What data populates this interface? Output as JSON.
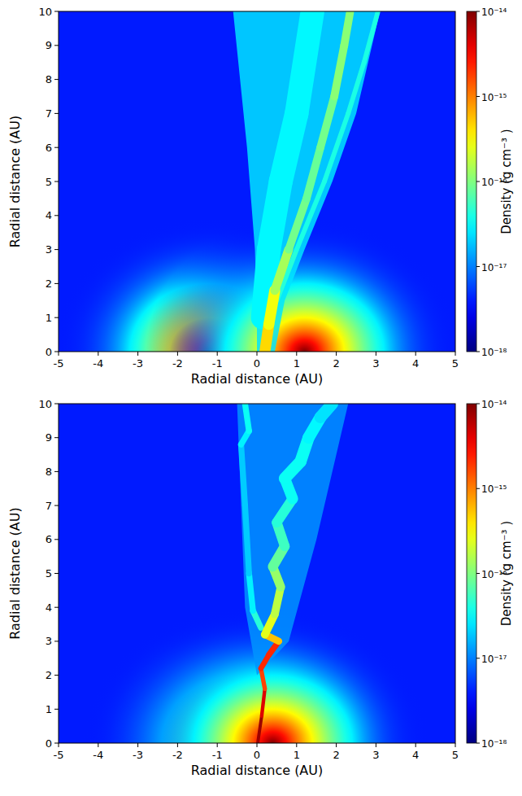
{
  "chart_data": [
    {
      "type": "heatmap",
      "x_label": "Radial distance (AU)",
      "y_label": "Radial distance (AU)",
      "xlim": [
        -5,
        5
      ],
      "xticks": [
        -5,
        -4,
        -3,
        -2,
        -1,
        0,
        1,
        2,
        3,
        4,
        5
      ],
      "ylim": [
        0,
        10
      ],
      "yticks": [
        0,
        1,
        2,
        3,
        4,
        5,
        6,
        7,
        8,
        9,
        10
      ],
      "ambient_density": 4e-18,
      "sources": [
        {
          "x": -1.2,
          "y": 0,
          "density": 1e-14,
          "radius": 4
        },
        {
          "x": 1.2,
          "y": 0,
          "density": 1e-14,
          "radius": 4
        }
      ],
      "outflow": {
        "points": [
          [
            0.0,
            0
          ],
          [
            0.45,
            0
          ],
          [
            0.7,
            1.5
          ],
          [
            1.2,
            3
          ],
          [
            1.9,
            5
          ],
          [
            2.5,
            7
          ],
          [
            3.1,
            10
          ],
          [
            -0.6,
            10
          ],
          [
            -0.25,
            6
          ],
          [
            -0.05,
            3
          ],
          [
            0,
            1
          ]
        ],
        "density": 2.5e-17
      },
      "filaments": [
        {
          "points": [
            [
              0.15,
              1
            ],
            [
              0.3,
              3
            ],
            [
              0.6,
              5
            ],
            [
              1.0,
              7
            ],
            [
              1.4,
              10
            ]
          ],
          "widths": [
            0.6,
            0.6,
            0.6,
            0.6,
            0.6
          ],
          "densities": [
            3e-17,
            3e-17,
            3e-17,
            3e-17,
            3e-17
          ]
        },
        {
          "points": [
            [
              0.5,
              1.5
            ],
            [
              1.0,
              3
            ],
            [
              1.7,
              5
            ],
            [
              2.3,
              7
            ],
            [
              2.7,
              8.5
            ],
            [
              3.05,
              10
            ]
          ],
          "widths": [
            0.12,
            0.12,
            0.12,
            0.12,
            0.12,
            0.12
          ],
          "densities": [
            5e-17,
            4e-17,
            4e-17,
            4e-17,
            4e-17,
            4e-17
          ]
        },
        {
          "points": [
            [
              0.2,
              0
            ],
            [
              0.3,
              0.8
            ],
            [
              0.45,
              1.8
            ],
            [
              0.8,
              3
            ],
            [
              1.25,
              4.5
            ],
            [
              1.6,
              6
            ],
            [
              1.95,
              7.5
            ],
            [
              2.2,
              9
            ],
            [
              2.35,
              10
            ]
          ],
          "widths": [
            0.25,
            0.3,
            0.25,
            0.2,
            0.2,
            0.2,
            0.2,
            0.2,
            0.2
          ],
          "densities": [
            5e-16,
            4e-16,
            2e-16,
            1e-16,
            8e-17,
            8e-17,
            1e-16,
            1.2e-16,
            1e-16
          ]
        }
      ],
      "colorbar": {
        "label": "Density (g cm⁻³ )",
        "range": [
          1e-18,
          1e-14
        ],
        "log": true,
        "ticks": [
          {
            "value": 1e-18,
            "label": "10⁻¹⁸"
          },
          {
            "value": 1e-17,
            "label": "10⁻¹⁷"
          },
          {
            "value": 1e-16,
            "label": "10⁻¹⁶"
          },
          {
            "value": 1e-15,
            "label": "10⁻¹⁵"
          },
          {
            "value": 1e-14,
            "label": "10⁻¹⁴"
          }
        ]
      }
    },
    {
      "type": "heatmap",
      "x_label": "Radial distance (AU)",
      "y_label": "Radial distance (AU)",
      "xlim": [
        -5,
        5
      ],
      "xticks": [
        -5,
        -4,
        -3,
        -2,
        -1,
        0,
        1,
        2,
        3,
        4,
        5
      ],
      "ylim": [
        0,
        10
      ],
      "yticks": [
        0,
        1,
        2,
        3,
        4,
        5,
        6,
        7,
        8,
        9,
        10
      ],
      "ambient_density": 4e-18,
      "sources": [
        {
          "x": -0.4,
          "y": 0,
          "density": 1e-14,
          "radius": 4
        },
        {
          "x": 0.4,
          "y": 0,
          "density": 1e-14,
          "radius": 4
        }
      ],
      "outflow": {
        "points": [
          [
            0,
            2
          ],
          [
            0.8,
            3
          ],
          [
            1.5,
            6
          ],
          [
            2.3,
            10
          ],
          [
            -0.5,
            10
          ],
          [
            -0.4,
            7
          ],
          [
            -0.3,
            4
          ]
        ],
        "density": 1.2e-17
      },
      "filaments": [
        {
          "points": [
            [
              0.1,
              3.4
            ],
            [
              -0.1,
              3.9
            ],
            [
              -0.2,
              5
            ],
            [
              -0.3,
              7
            ],
            [
              -0.4,
              8.8
            ],
            [
              -0.2,
              9.2
            ],
            [
              -0.3,
              10
            ]
          ],
          "widths": [
            0.15,
            0.15,
            0.15,
            0.15,
            0.15,
            0.15,
            0.15
          ],
          "densities": [
            5e-17,
            4e-17,
            2e-17,
            2e-17,
            2e-17,
            4e-17,
            3e-17
          ]
        },
        {
          "points": [
            [
              0.02,
              0
            ],
            [
              0.12,
              0.8
            ],
            [
              0.2,
              1.6
            ],
            [
              0.1,
              2.2
            ],
            [
              0.3,
              2.6
            ],
            [
              0.55,
              3.0
            ],
            [
              0.2,
              3.2
            ],
            [
              0.45,
              3.8
            ],
            [
              0.6,
              4.6
            ],
            [
              0.4,
              5.2
            ],
            [
              0.7,
              5.8
            ],
            [
              0.5,
              6.5
            ],
            [
              0.9,
              7.2
            ],
            [
              0.7,
              7.8
            ],
            [
              1.1,
              8.3
            ],
            [
              1.3,
              9.0
            ],
            [
              1.6,
              9.6
            ],
            [
              1.9,
              10
            ]
          ],
          "widths": [
            0.08,
            0.08,
            0.1,
            0.12,
            0.15,
            0.15,
            0.2,
            0.2,
            0.2,
            0.25,
            0.25,
            0.25,
            0.25,
            0.3,
            0.3,
            0.3,
            0.3,
            0.3
          ],
          "densities": [
            1e-14,
            6e-15,
            3e-15,
            1e-15,
            5e-15,
            1e-15,
            3e-16,
            2e-16,
            1.5e-16,
            1e-16,
            6e-17,
            5e-17,
            4e-17,
            3e-17,
            4e-17,
            3e-17,
            3e-17,
            2e-17
          ]
        }
      ],
      "colorbar": {
        "label": "Density (g cm⁻³ )",
        "range": [
          1e-18,
          1e-14
        ],
        "log": true,
        "ticks": [
          {
            "value": 1e-18,
            "label": "10⁻¹⁸"
          },
          {
            "value": 1e-17,
            "label": "10⁻¹⁷"
          },
          {
            "value": 1e-16,
            "label": "10⁻¹⁶"
          },
          {
            "value": 1e-15,
            "label": "10⁻¹⁵"
          },
          {
            "value": 1e-14,
            "label": "10⁻¹⁴"
          }
        ]
      }
    }
  ]
}
